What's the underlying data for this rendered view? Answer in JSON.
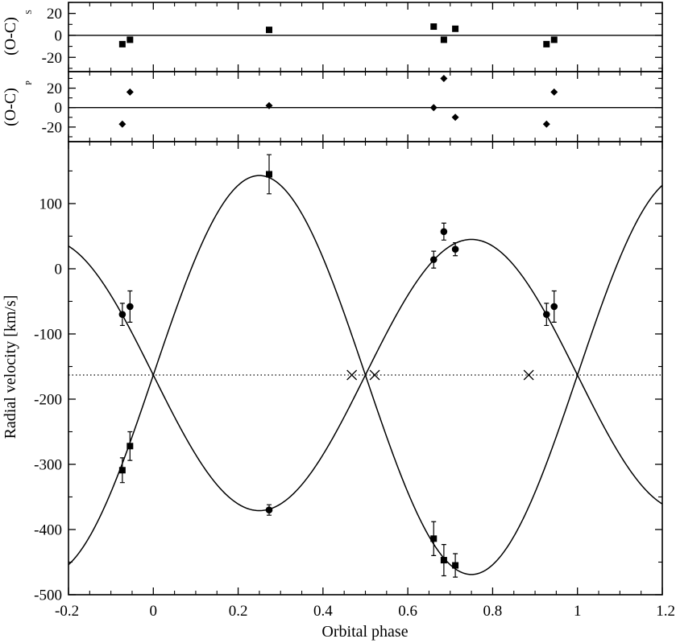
{
  "chart_data": {
    "type": "scatter",
    "xlabel": "Orbital phase",
    "xlim": [
      -0.2,
      1.2
    ],
    "xticks": [
      "-0.2",
      "0",
      "0.2",
      "0.4",
      "0.6",
      "0.8",
      "1",
      "1.2"
    ],
    "panels": [
      {
        "id": "oc-secondary",
        "ylabel": "(O-C)",
        "ylabel_sub": "S",
        "ylim": [
          -33,
          30
        ],
        "yticks": [
          "20",
          "0",
          "-20"
        ],
        "zero_line": true,
        "series": [
          {
            "marker": "square",
            "points": [
              {
                "x": -0.073,
                "y": -8
              },
              {
                "x": -0.055,
                "y": -4
              },
              {
                "x": 0.273,
                "y": 5
              },
              {
                "x": 0.661,
                "y": 8
              },
              {
                "x": 0.685,
                "y": -4
              },
              {
                "x": 0.712,
                "y": 6
              },
              {
                "x": 0.927,
                "y": -8
              },
              {
                "x": 0.945,
                "y": -4
              }
            ]
          }
        ]
      },
      {
        "id": "oc-primary",
        "ylabel": "(O-C)",
        "ylabel_sub": "P",
        "ylim": [
          -35,
          37
        ],
        "yticks": [
          "20",
          "0",
          "-20"
        ],
        "zero_line": true,
        "series": [
          {
            "marker": "diamond",
            "points": [
              {
                "x": -0.073,
                "y": -17
              },
              {
                "x": -0.055,
                "y": 16
              },
              {
                "x": 0.273,
                "y": 2
              },
              {
                "x": 0.661,
                "y": 0
              },
              {
                "x": 0.685,
                "y": 30
              },
              {
                "x": 0.712,
                "y": -10
              },
              {
                "x": 0.927,
                "y": -17
              },
              {
                "x": 0.945,
                "y": 16
              }
            ]
          }
        ]
      },
      {
        "id": "radial-velocity",
        "ylabel": "Radial velocity [km/s]",
        "ylim": [
          -500,
          195
        ],
        "yticks": [
          "100",
          "0",
          "-100",
          "-200",
          "-300",
          "-400",
          "-500"
        ],
        "systemic_velocity": -163,
        "series": [
          {
            "marker": "circle",
            "points": [
              {
                "x": -0.073,
                "y": -70,
                "err": 17
              },
              {
                "x": -0.055,
                "y": -58,
                "err": 24
              },
              {
                "x": 0.273,
                "y": -370,
                "err": 8
              },
              {
                "x": 0.661,
                "y": 14,
                "err": 13
              },
              {
                "x": 0.685,
                "y": 57,
                "err": 13
              },
              {
                "x": 0.712,
                "y": 30,
                "err": 10
              },
              {
                "x": 0.927,
                "y": -70,
                "err": 17
              },
              {
                "x": 0.945,
                "y": -58,
                "err": 24
              }
            ],
            "curve": {
              "gamma": -163,
              "K": 208,
              "phase_of_max": 0.75,
              "skew": 0.2
            }
          },
          {
            "marker": "square",
            "points": [
              {
                "x": -0.073,
                "y": -309,
                "err": 19
              },
              {
                "x": -0.055,
                "y": -272,
                "err": 22
              },
              {
                "x": 0.273,
                "y": 145,
                "err": 30
              },
              {
                "x": 0.661,
                "y": -414,
                "err": 26
              },
              {
                "x": 0.685,
                "y": -447,
                "err": 24
              },
              {
                "x": 0.712,
                "y": -455,
                "err": 18
              }
            ],
            "curve": {
              "gamma": -163,
              "K": 306,
              "phase_of_max": 0.25,
              "skew": 0.2
            }
          }
        ],
        "cross_markers": [
          {
            "x": 0.468,
            "y": -163
          },
          {
            "x": 0.522,
            "y": -163
          },
          {
            "x": 0.885,
            "y": -163
          }
        ]
      }
    ]
  }
}
